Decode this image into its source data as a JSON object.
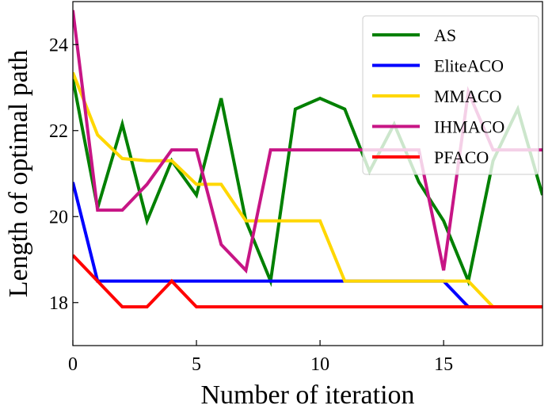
{
  "chart_data": {
    "type": "line",
    "title": "",
    "xlabel": "Number of iteration",
    "ylabel": "Length of optimal path",
    "xlim": [
      0,
      19
    ],
    "ylim": [
      17,
      25
    ],
    "xticks": [
      0,
      5,
      10,
      15
    ],
    "yticks": [
      18,
      20,
      22,
      24
    ],
    "grid": false,
    "legend_position": "top-right",
    "x": [
      0,
      1,
      2,
      3,
      4,
      5,
      6,
      7,
      8,
      9,
      10,
      11,
      12,
      13,
      14,
      15,
      16,
      17,
      18,
      19
    ],
    "series": [
      {
        "name": "AS",
        "color": "#008000",
        "values": [
          23.2,
          20.2,
          22.15,
          19.9,
          21.3,
          20.5,
          22.75,
          19.9,
          18.5,
          22.5,
          22.75,
          22.5,
          21.05,
          22.15,
          20.8,
          19.9,
          18.5,
          21.3,
          22.5,
          20.5
        ]
      },
      {
        "name": "EliteACO",
        "color": "#0000ff",
        "values": [
          20.8,
          18.5,
          18.5,
          18.5,
          18.5,
          18.5,
          18.5,
          18.5,
          18.5,
          18.5,
          18.5,
          18.5,
          18.5,
          18.5,
          18.5,
          18.5,
          17.9,
          17.9,
          17.9,
          17.9
        ]
      },
      {
        "name": "MMACO",
        "color": "#ffd700",
        "values": [
          23.35,
          21.9,
          21.35,
          21.3,
          21.3,
          20.75,
          20.75,
          19.9,
          19.9,
          19.9,
          19.9,
          18.5,
          18.5,
          18.5,
          18.5,
          18.5,
          18.5,
          17.9,
          17.9,
          17.9
        ]
      },
      {
        "name": "IHMACO",
        "color": "#c71585",
        "values": [
          24.8,
          20.15,
          20.15,
          20.75,
          21.55,
          21.55,
          19.35,
          18.75,
          21.55,
          21.55,
          21.55,
          21.55,
          21.55,
          21.55,
          21.55,
          18.75,
          22.9,
          21.55,
          21.55,
          21.55
        ]
      },
      {
        "name": "PFACO",
        "color": "#ff0000",
        "values": [
          19.1,
          18.5,
          17.9,
          17.9,
          18.5,
          17.9,
          17.9,
          17.9,
          17.9,
          17.9,
          17.9,
          17.9,
          17.9,
          17.9,
          17.9,
          17.9,
          17.9,
          17.9,
          17.9,
          17.9
        ]
      }
    ]
  }
}
